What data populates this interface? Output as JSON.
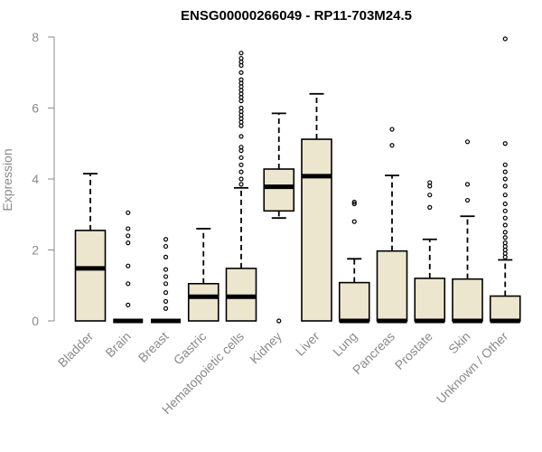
{
  "chart_data": {
    "type": "boxplot",
    "title": "ENSG00000266049 - RP11-703M24.5",
    "xlabel": "",
    "ylabel": "Expression",
    "ylim": [
      0,
      8
    ],
    "yticks": [
      "0",
      "2",
      "4",
      "6",
      "8"
    ],
    "grid": false,
    "box_fill": "#ede6cf",
    "box_stroke": "#000000",
    "outlier_color": "#000000",
    "categories": [
      "Bladder",
      "Brain",
      "Breast",
      "Gastric",
      "Hematopoietic cells",
      "Kidney",
      "Liver",
      "Lung",
      "Pancreas",
      "Prostate",
      "Skin",
      "Unknown / Other"
    ],
    "boxes": [
      {
        "name": "Bladder",
        "whisker_low": 0,
        "q1": 0,
        "median": 1.48,
        "q3": 2.55,
        "whisker_high": 4.15,
        "outliers": []
      },
      {
        "name": "Brain",
        "whisker_low": 0,
        "q1": 0,
        "median": 0,
        "q3": 0,
        "whisker_high": 0,
        "outliers": [
          3.05,
          2.6,
          2.4,
          2.2,
          1.55,
          1.05,
          0.45
        ]
      },
      {
        "name": "Breast",
        "whisker_low": 0,
        "q1": 0,
        "median": 0,
        "q3": 0,
        "whisker_high": 0,
        "outliers": [
          2.3,
          2.1,
          1.8,
          1.45,
          1.25,
          1.05,
          0.8,
          0.55,
          0.35
        ]
      },
      {
        "name": "Gastric",
        "whisker_low": 0,
        "q1": 0,
        "median": 0.68,
        "q3": 1.05,
        "whisker_high": 2.6,
        "outliers": []
      },
      {
        "name": "Hematopoietic cells",
        "whisker_low": 0,
        "q1": 0,
        "median": 0.68,
        "q3": 1.48,
        "whisker_high": 3.75,
        "outliers": [
          3.85,
          4.0,
          4.2,
          4.4,
          4.6,
          4.8,
          4.9,
          5.2,
          5.5,
          5.6,
          5.7,
          5.8,
          5.9,
          6.0,
          6.2,
          6.3,
          6.4,
          6.5,
          6.6,
          6.7,
          6.8,
          7.0,
          7.2,
          7.3,
          7.4,
          7.55
        ]
      },
      {
        "name": "Kidney",
        "whisker_low": 2.9,
        "q1": 3.1,
        "median": 3.78,
        "q3": 4.28,
        "whisker_high": 5.85,
        "outliers": [
          0
        ]
      },
      {
        "name": "Liver",
        "whisker_low": 0,
        "q1": 0,
        "median": 4.08,
        "q3": 5.12,
        "whisker_high": 6.4,
        "outliers": []
      },
      {
        "name": "Lung",
        "whisker_low": 0,
        "q1": 0,
        "median": 0,
        "q3": 1.08,
        "whisker_high": 1.75,
        "outliers": [
          2.8,
          3.3,
          3.35
        ]
      },
      {
        "name": "Pancreas",
        "whisker_low": 0,
        "q1": 0,
        "median": 0,
        "q3": 1.97,
        "whisker_high": 4.1,
        "outliers": [
          4.95,
          5.4
        ]
      },
      {
        "name": "Prostate",
        "whisker_low": 0,
        "q1": 0,
        "median": 0,
        "q3": 1.2,
        "whisker_high": 2.3,
        "outliers": [
          3.2,
          3.55,
          3.8,
          3.9
        ]
      },
      {
        "name": "Skin",
        "whisker_low": 0,
        "q1": 0,
        "median": 0,
        "q3": 1.18,
        "whisker_high": 2.95,
        "outliers": [
          3.4,
          3.85,
          5.05
        ]
      },
      {
        "name": "Unknown / Other",
        "whisker_low": 0,
        "q1": 0,
        "median": 0,
        "q3": 0.7,
        "whisker_high": 1.72,
        "outliers": [
          1.8,
          1.9,
          2.0,
          2.1,
          2.2,
          2.35,
          2.5,
          2.7,
          2.9,
          3.1,
          3.3,
          3.55,
          3.8,
          4.0,
          4.2,
          4.4,
          5.0,
          7.95
        ]
      }
    ]
  }
}
